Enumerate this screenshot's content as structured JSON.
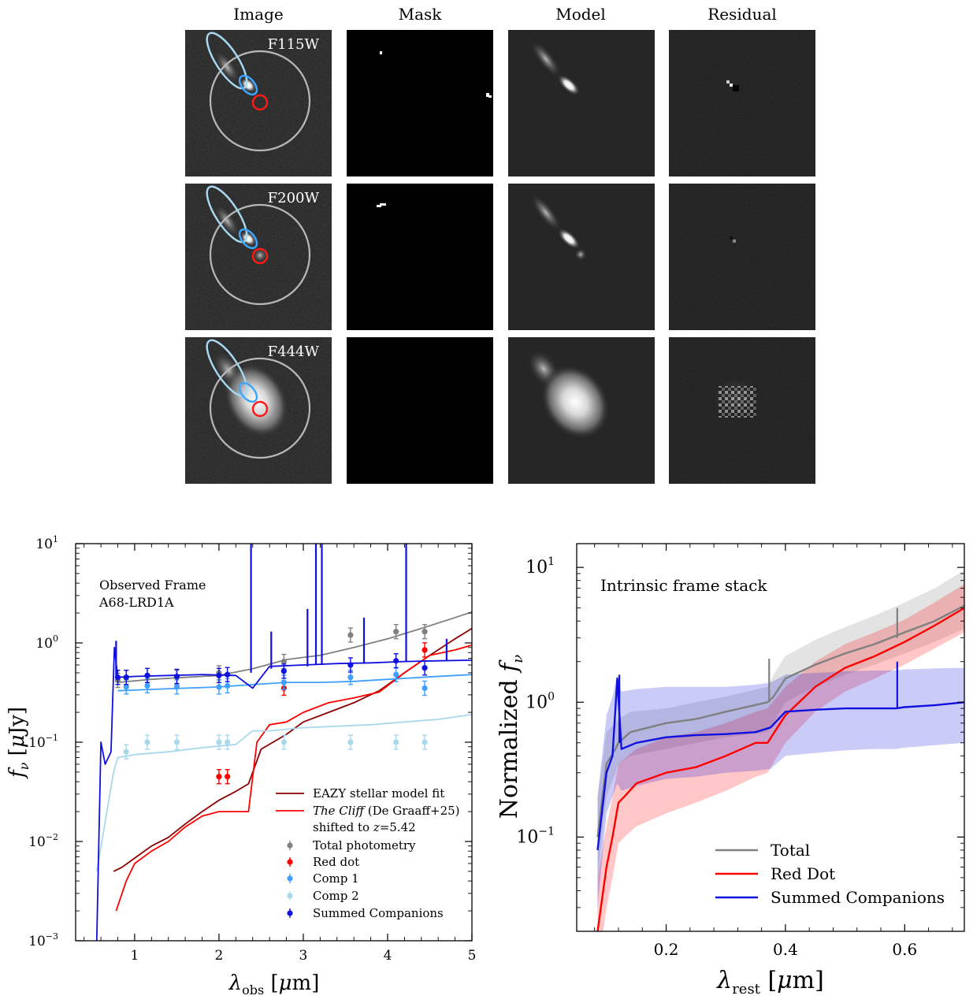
{
  "panel_grid": {
    "columns": [
      "Image",
      "Mask",
      "Model",
      "Residual"
    ],
    "rows": [
      {
        "filter": "F115W"
      },
      {
        "filter": "F200W"
      },
      {
        "filter": "F444W"
      }
    ]
  },
  "colors": {
    "eazy": "#8b0000",
    "cliff": "#ff0000",
    "total": "#808080",
    "red_dot": "#ff0000",
    "comp1": "#3fa0ff",
    "comp2": "#a8d8ea",
    "summed": "#1010e0",
    "ellipse_outer": "#a6d8f0",
    "ellipse_inner": "#3ea6ff",
    "aperture": "#b8b8b8"
  },
  "chart_data": [
    {
      "type": "line",
      "title": "",
      "annotation": [
        "Observed Frame",
        "A68-LRD1A"
      ],
      "xlabel": "λobs [μm]",
      "ylabel": "fν [μJy]",
      "xscale": "linear",
      "yscale": "log",
      "xlim": [
        0.3,
        5.0
      ],
      "ylim": [
        0.001,
        10
      ],
      "xticks": [
        1,
        2,
        3,
        4,
        5
      ],
      "yticks": [
        0.001,
        0.01,
        0.1,
        1,
        10
      ],
      "ytick_labels": [
        "10",
        "10",
        "10",
        "10",
        "10"
      ],
      "ytick_exponents": [
        "−3",
        "−2",
        "−1",
        "0",
        "1"
      ],
      "legend_location": "lower-right",
      "legend": [
        {
          "label": "EAZY stellar model fit",
          "kind": "line",
          "color": "#8b0000"
        },
        {
          "label": "The Cliff (De Graaff+25)",
          "label_italic_part": "The Cliff",
          "label_rest": " (De Graaff+25)",
          "label_line2_prefix": "shifted to ",
          "label_line2_var": "z",
          "label_line2_suffix": "=5.42",
          "kind": "line",
          "color": "#ff0000"
        },
        {
          "label": "Total photometry",
          "kind": "point",
          "color": "#808080"
        },
        {
          "label": "Red dot",
          "kind": "point",
          "color": "#ff0000"
        },
        {
          "label": "Comp 1",
          "kind": "point",
          "color": "#3fa0ff"
        },
        {
          "label": "Comp 2",
          "kind": "point",
          "color": "#a8d8ea"
        },
        {
          "label": "Summed Companions",
          "kind": "point",
          "color": "#1010e0"
        }
      ],
      "series": [
        {
          "name": "EAZY stellar model fit",
          "color": "#8b0000",
          "x": [
            0.75,
            0.85,
            1.0,
            1.2,
            1.4,
            1.6,
            1.8,
            2.0,
            2.2,
            2.35,
            2.5,
            2.8,
            3.0,
            3.3,
            3.6,
            3.9,
            4.2,
            4.5,
            4.8,
            5.0
          ],
          "y": [
            0.005,
            0.0055,
            0.0068,
            0.009,
            0.011,
            0.015,
            0.02,
            0.026,
            0.032,
            0.038,
            0.085,
            0.12,
            0.16,
            0.2,
            0.25,
            0.33,
            0.5,
            0.75,
            1.1,
            1.4
          ]
        },
        {
          "name": "The Cliff (De Graaff+25)",
          "color": "#ff0000",
          "x": [
            0.78,
            0.9,
            1.0,
            1.2,
            1.4,
            1.6,
            1.8,
            2.0,
            2.2,
            2.35,
            2.45,
            2.6,
            2.8,
            3.0,
            3.3,
            3.6,
            3.9,
            4.2,
            4.5,
            4.8,
            5.0
          ],
          "y": [
            0.002,
            0.004,
            0.006,
            0.008,
            0.01,
            0.014,
            0.018,
            0.02,
            0.02,
            0.02,
            0.1,
            0.15,
            0.16,
            0.2,
            0.25,
            0.28,
            0.32,
            0.5,
            0.75,
            0.85,
            0.95
          ]
        },
        {
          "name": "Total spectrum",
          "color": "#808080",
          "x": [
            0.8,
            1.2,
            1.6,
            2.0,
            2.4,
            2.8,
            3.2,
            3.6,
            4.0,
            4.4,
            4.8,
            5.0
          ],
          "y": [
            0.4,
            0.43,
            0.45,
            0.47,
            0.55,
            0.68,
            0.75,
            0.9,
            1.1,
            1.4,
            1.8,
            2.05
          ]
        },
        {
          "name": "Comp 1 spectrum",
          "color": "#3fa0ff",
          "x": [
            0.8,
            1.2,
            1.6,
            2.0,
            2.4,
            2.8,
            3.2,
            3.6,
            4.0,
            4.4,
            4.8,
            5.0
          ],
          "y": [
            0.33,
            0.34,
            0.35,
            0.36,
            0.38,
            0.4,
            0.4,
            0.41,
            0.43,
            0.45,
            0.47,
            0.48
          ]
        },
        {
          "name": "Comp 2 spectrum",
          "color": "#a8d8ea",
          "x": [
            0.55,
            0.75,
            0.8,
            1.0,
            1.4,
            1.8,
            2.2,
            2.4,
            2.6,
            3.0,
            3.4,
            3.8,
            4.2,
            4.6,
            5.0
          ],
          "y": [
            0.005,
            0.05,
            0.07,
            0.075,
            0.08,
            0.088,
            0.095,
            0.13,
            0.13,
            0.14,
            0.145,
            0.15,
            0.16,
            0.17,
            0.19
          ]
        },
        {
          "name": "Summed Companions spectrum",
          "color": "#1010e0",
          "x": [
            0.55,
            0.6,
            0.65,
            0.72,
            0.76,
            0.8,
            1.0,
            1.4,
            1.8,
            2.2,
            2.4,
            2.6,
            3.0,
            3.4,
            3.8,
            4.2,
            4.6,
            5.0
          ],
          "y": [
            0.001,
            0.1,
            0.06,
            0.08,
            0.9,
            0.45,
            0.46,
            0.47,
            0.48,
            0.47,
            0.35,
            0.58,
            0.6,
            0.62,
            0.63,
            0.65,
            0.66,
            0.67
          ]
        },
        {
          "name": "Total photometry",
          "color": "#808080",
          "x": [
            0.8,
            0.9,
            1.15,
            1.5,
            2.0,
            2.77,
            3.56,
            4.1,
            4.44
          ],
          "y": [
            0.42,
            0.45,
            0.47,
            0.45,
            0.5,
            0.65,
            1.2,
            1.3,
            1.3
          ]
        },
        {
          "name": "Red dot",
          "color": "#ff0000",
          "x": [
            2.0,
            2.1,
            2.77,
            4.44
          ],
          "y": [
            0.045,
            0.045,
            0.35,
            0.85
          ]
        },
        {
          "name": "Comp 1",
          "color": "#3fa0ff",
          "x": [
            0.9,
            1.15,
            1.5,
            2.0,
            2.1,
            2.77,
            3.56,
            4.1,
            4.44
          ],
          "y": [
            0.36,
            0.37,
            0.36,
            0.36,
            0.37,
            0.4,
            0.45,
            0.48,
            0.35
          ]
        },
        {
          "name": "Comp 2",
          "color": "#a8d8ea",
          "x": [
            0.9,
            1.15,
            1.5,
            2.0,
            2.1,
            2.77,
            3.56,
            4.1,
            4.44
          ],
          "y": [
            0.08,
            0.1,
            0.1,
            0.1,
            0.1,
            0.1,
            0.1,
            0.1,
            0.1
          ]
        },
        {
          "name": "Summed Companions",
          "color": "#1010e0",
          "x": [
            0.8,
            0.9,
            1.15,
            1.5,
            2.0,
            2.1,
            2.77,
            3.56,
            4.1,
            4.44
          ],
          "y": [
            0.45,
            0.45,
            0.47,
            0.46,
            0.47,
            0.48,
            0.52,
            0.6,
            0.66,
            0.56
          ]
        }
      ],
      "emission_lines": [
        {
          "x": 0.78,
          "ymin": 0.45,
          "ymax": 1.05,
          "color": "#1010e0"
        },
        {
          "x": 2.38,
          "ymin": 0.5,
          "ymax": 10,
          "color": "#1010e0"
        },
        {
          "x": 2.62,
          "ymin": 0.55,
          "ymax": 1.3,
          "color": "#1010e0"
        },
        {
          "x": 3.05,
          "ymin": 0.58,
          "ymax": 2.2,
          "color": "#1010e0"
        },
        {
          "x": 3.15,
          "ymin": 0.6,
          "ymax": 10,
          "color": "#1010e0"
        },
        {
          "x": 3.22,
          "ymin": 0.6,
          "ymax": 10,
          "color": "#1010e0"
        },
        {
          "x": 3.72,
          "ymin": 0.62,
          "ymax": 1.8,
          "color": "#1010e0"
        },
        {
          "x": 4.22,
          "ymin": 0.65,
          "ymax": 10,
          "color": "#1010e0"
        },
        {
          "x": 4.7,
          "ymin": 0.66,
          "ymax": 1.1,
          "color": "#1010e0"
        }
      ]
    },
    {
      "type": "area",
      "title": "",
      "annotation": [
        "Intrinsic frame stack"
      ],
      "xlabel": "λrest [μm]",
      "ylabel": "Normalized fν",
      "xscale": "linear",
      "yscale": "log",
      "xlim": [
        0.05,
        0.7
      ],
      "ylim": [
        0.02,
        15
      ],
      "xticks": [
        0.2,
        0.4,
        0.6
      ],
      "xtick_labels": [
        "0.2",
        "0.4",
        "0.6"
      ],
      "yticks": [
        0.1,
        1,
        10
      ],
      "ytick_labels": [
        "10",
        "10",
        "10"
      ],
      "ytick_exponents": [
        "−1",
        "0",
        "1"
      ],
      "legend_location": "lower-right",
      "legend": [
        {
          "label": "Total",
          "color": "#808080"
        },
        {
          "label": "Red Dot",
          "color": "#ff0000"
        },
        {
          "label": "Summed Companions",
          "color": "#1010e0"
        }
      ],
      "series": [
        {
          "name": "Total",
          "color": "#808080",
          "x": [
            0.085,
            0.1,
            0.115,
            0.12,
            0.14,
            0.2,
            0.25,
            0.3,
            0.37,
            0.38,
            0.4,
            0.45,
            0.5,
            0.55,
            0.6,
            0.65,
            0.7
          ],
          "y": [
            0.1,
            0.35,
            0.45,
            0.5,
            0.6,
            0.7,
            0.75,
            0.85,
            1.0,
            1.1,
            1.5,
            1.9,
            2.3,
            2.7,
            3.3,
            4.0,
            5.2
          ],
          "band_low": [
            0.05,
            0.2,
            0.3,
            0.35,
            0.4,
            0.45,
            0.5,
            0.55,
            0.6,
            0.7,
            1.0,
            1.3,
            1.6,
            1.9,
            2.3,
            2.8,
            3.5
          ],
          "band_high": [
            0.2,
            0.6,
            0.7,
            0.75,
            0.85,
            0.9,
            1.0,
            1.1,
            1.3,
            1.6,
            2.2,
            2.9,
            3.6,
            4.4,
            5.5,
            7.0,
            9.5
          ]
        },
        {
          "name": "Red Dot",
          "color": "#ff0000",
          "x": [
            0.085,
            0.1,
            0.11,
            0.12,
            0.13,
            0.15,
            0.2,
            0.25,
            0.3,
            0.35,
            0.37,
            0.4,
            0.45,
            0.5,
            0.55,
            0.6,
            0.65,
            0.7
          ],
          "y": [
            0.02,
            0.06,
            0.1,
            0.18,
            0.2,
            0.25,
            0.3,
            0.33,
            0.4,
            0.5,
            0.5,
            0.8,
            1.3,
            1.8,
            2.2,
            2.8,
            3.7,
            5.0
          ],
          "band_low": [
            0.01,
            0.03,
            0.05,
            0.09,
            0.1,
            0.12,
            0.15,
            0.18,
            0.22,
            0.28,
            0.3,
            0.5,
            0.85,
            1.2,
            1.5,
            1.9,
            2.5,
            3.3
          ],
          "band_high": [
            0.05,
            0.12,
            0.2,
            0.35,
            0.38,
            0.45,
            0.55,
            0.6,
            0.7,
            0.85,
            0.9,
            1.3,
            2.0,
            2.7,
            3.3,
            4.1,
            5.5,
            7.5
          ]
        },
        {
          "name": "Summed Companions",
          "color": "#1010e0",
          "x": [
            0.085,
            0.1,
            0.11,
            0.118,
            0.125,
            0.15,
            0.2,
            0.25,
            0.3,
            0.35,
            0.375,
            0.4,
            0.45,
            0.5,
            0.55,
            0.585,
            0.6,
            0.65,
            0.7
          ],
          "y": [
            0.08,
            0.3,
            0.4,
            1.5,
            0.45,
            0.5,
            0.55,
            0.57,
            0.58,
            0.6,
            0.65,
            0.85,
            0.88,
            0.9,
            0.9,
            0.9,
            0.92,
            0.95,
            1.0
          ],
          "band_low": [
            0.03,
            0.15,
            0.2,
            0.25,
            0.22,
            0.24,
            0.27,
            0.28,
            0.3,
            0.31,
            0.32,
            0.4,
            0.42,
            0.44,
            0.45,
            0.45,
            0.46,
            0.48,
            0.5
          ],
          "band_high": [
            0.2,
            0.8,
            1.1,
            1.6,
            1.2,
            1.25,
            1.3,
            1.3,
            1.3,
            1.35,
            1.4,
            1.6,
            1.65,
            1.7,
            1.72,
            1.72,
            1.75,
            1.78,
            1.8
          ]
        }
      ],
      "emission_lines": [
        {
          "x": 0.1215,
          "ymin": 0.5,
          "ymax": 1.6,
          "color": "#1010e0"
        },
        {
          "x": 0.3727,
          "ymin": 1.0,
          "ymax": 2.1,
          "color": "#808080"
        },
        {
          "x": 0.5875,
          "ymin": 0.9,
          "ymax": 2.0,
          "color": "#1010e0"
        },
        {
          "x": 0.5875,
          "ymin": 3.0,
          "ymax": 5.0,
          "color": "#808080"
        }
      ]
    }
  ]
}
